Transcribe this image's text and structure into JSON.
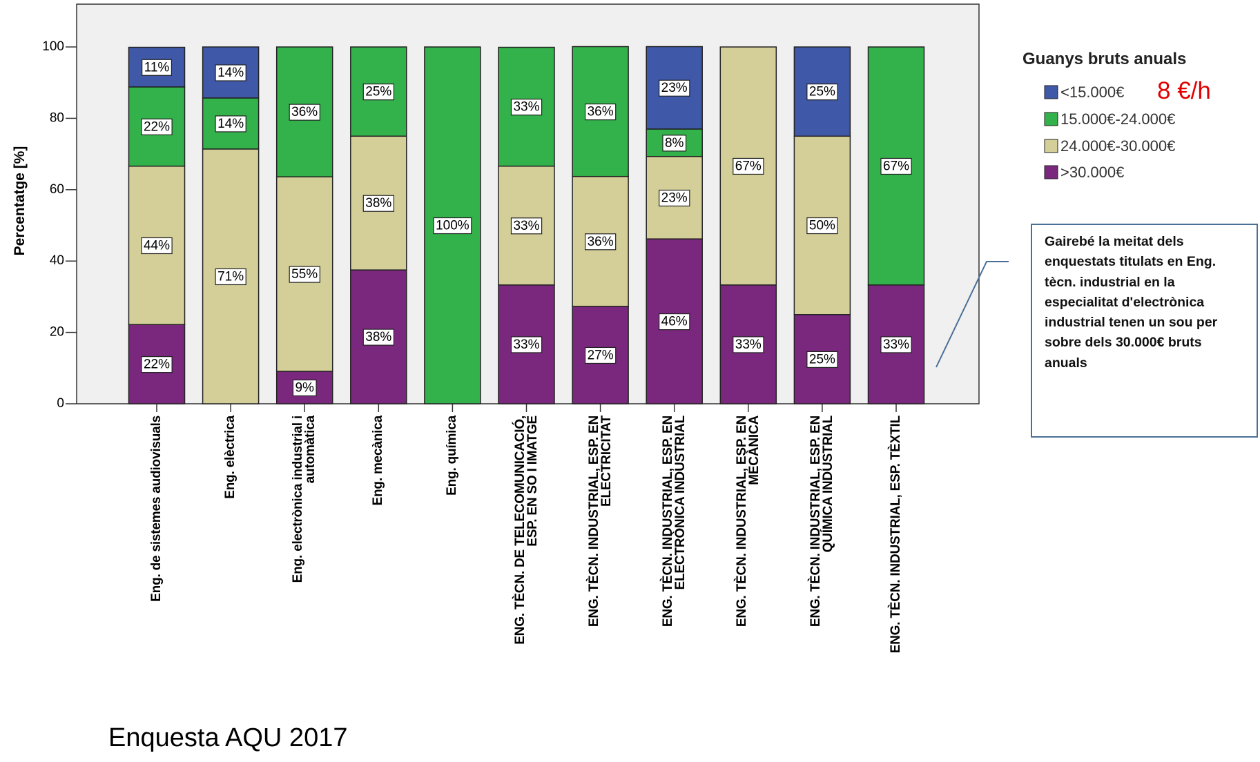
{
  "chart_data": {
    "type": "stacked_bar",
    "y_label": "Percentatge [%]",
    "legend_title": "Guanys bruts anuals",
    "legend_position": "right",
    "rate_annotation": "8 €/h",
    "callout": "Gairebé la meitat dels enquestats titulats en Eng. tècn. industrial en la especialitat d'electrònica industrial tenen un sou per sobre dels 30.000€ bruts anuals",
    "footnote": "Enquesta AQU 2017",
    "ylim": [
      0,
      112
    ],
    "yticks": [
      0,
      20,
      40,
      60,
      80,
      100
    ],
    "categories": [
      "Eng. de sistemes audiovisuals",
      "Eng. elèctrica",
      "Eng. electrònica industrial i\nautomàtica",
      "Eng. mecànica",
      "Eng. química",
      "ENG. TÈCN. DE TELECOMUNICACIÓ,\nESP. EN SO I IMATGE",
      "ENG. TÈCN. INDUSTRIAL, ESP. EN\nELECTRICITAT",
      "ENG. TÈCN. INDUSTRIAL, ESP. EN\nELECTRÒNICA INDUSTRIAL",
      "ENG. TÈCN. INDUSTRIAL, ESP. EN\nMECÀNICA",
      "ENG. TÈCN. INDUSTRIAL, ESP. EN\nQUÍMICA INDUSTRIAL",
      "ENG. TÈCN. INDUSTRIAL, ESP. TÈXTIL"
    ],
    "series": [
      {
        "name": "<15.000€",
        "color": "#3f58a8",
        "values": [
          11.1,
          14.3,
          null,
          null,
          null,
          null,
          null,
          23.1,
          null,
          25,
          null
        ],
        "value_labels": [
          "11%",
          "14%",
          null,
          null,
          null,
          null,
          null,
          "23%",
          null,
          "25%",
          null
        ]
      },
      {
        "name": "15.000€-24.000€",
        "color": "#33b24b",
        "values": [
          22.2,
          14.3,
          36.4,
          25,
          100,
          33.3,
          36.4,
          7.7,
          null,
          null,
          66.7
        ],
        "value_labels": [
          "22%",
          "14%",
          "36%",
          "25%",
          "100%",
          "33%",
          "36%",
          "8%",
          null,
          null,
          "67%"
        ]
      },
      {
        "name": "24.000€-30.000€",
        "color": "#d4cf98",
        "values": [
          44.4,
          71.4,
          54.5,
          37.5,
          null,
          33.3,
          36.4,
          23.1,
          66.7,
          50,
          null
        ],
        "value_labels": [
          "44%",
          "71%",
          "55%",
          "38%",
          null,
          "33%",
          "36%",
          "23%",
          "67%",
          "50%",
          null
        ]
      },
      {
        "name": ">30.000€",
        "color": "#7a287d",
        "values": [
          22.2,
          null,
          9.1,
          37.5,
          null,
          33.3,
          27.3,
          46.2,
          33.3,
          25,
          33.3
        ],
        "value_labels": [
          "22%",
          null,
          "9%",
          "38%",
          null,
          "33%",
          "27%",
          "46%",
          "33%",
          "25%",
          "33%"
        ]
      }
    ]
  }
}
